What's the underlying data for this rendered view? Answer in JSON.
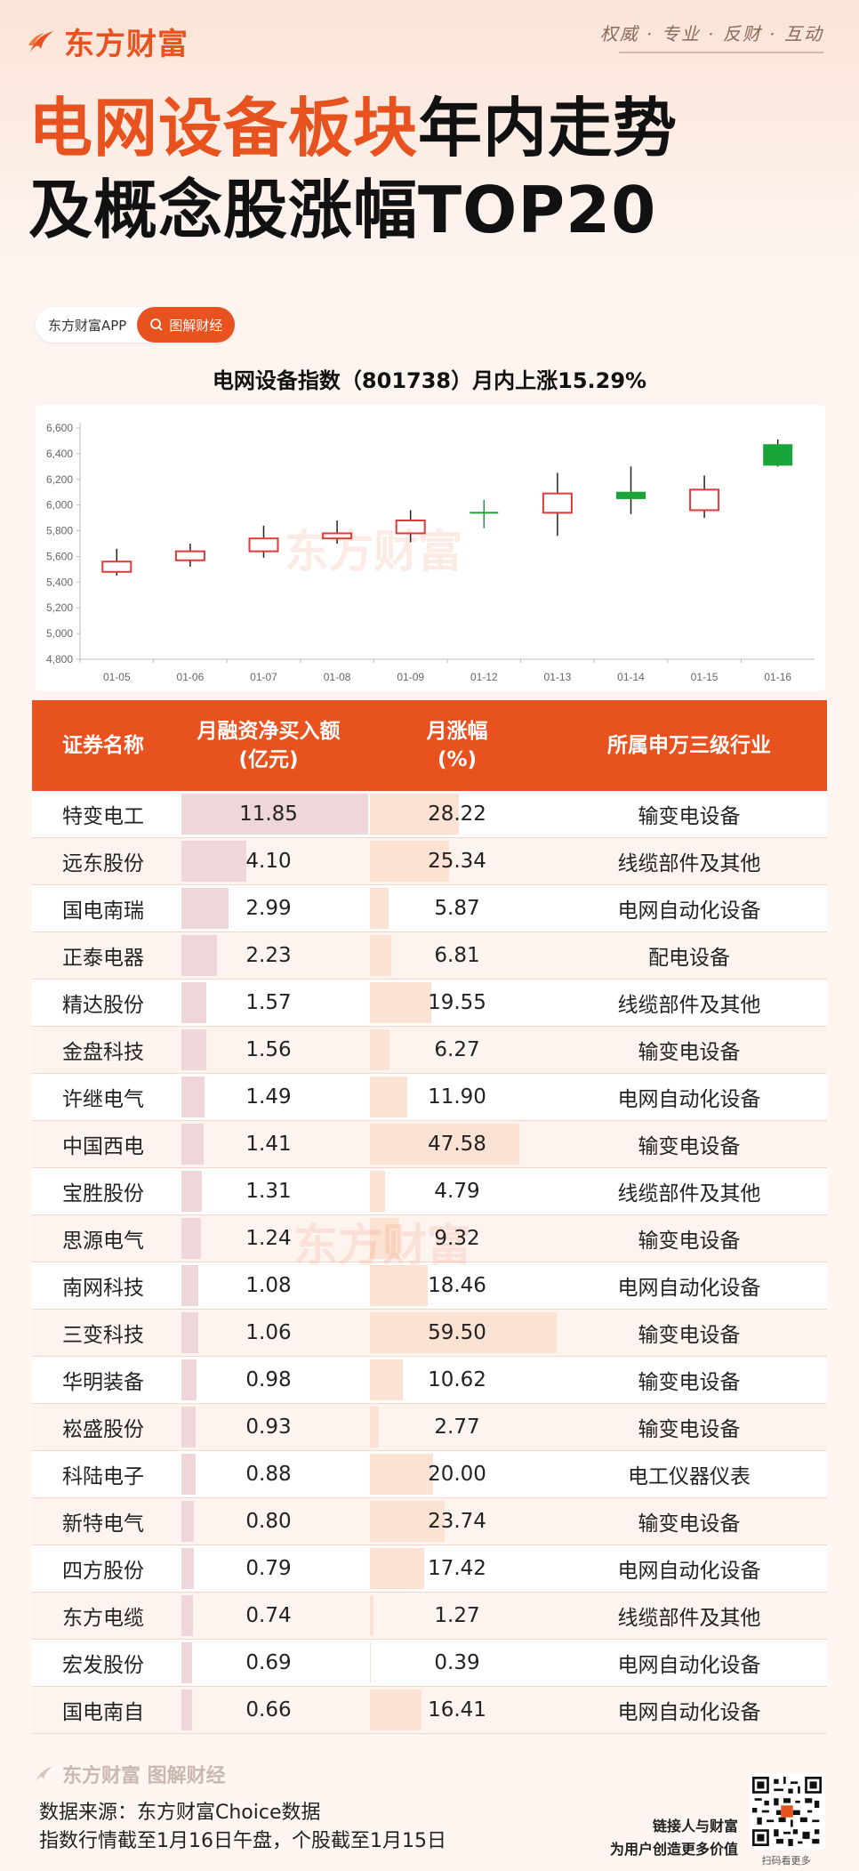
{
  "brand": {
    "name": "东方财富",
    "slogan": "权威 · 专业 · 反财 · 互动"
  },
  "title": {
    "highlight": "电网设备板块",
    "rest": "年内走势",
    "line2": "及概念股涨幅TOP20"
  },
  "tag": {
    "app": "东方财富APP",
    "category": "图解财经"
  },
  "chart_data": {
    "type": "candlestick",
    "title": "电网设备指数（801738）月内上涨15.29%",
    "categories": [
      "01-05",
      "01-06",
      "01-07",
      "01-08",
      "01-09",
      "01-12",
      "01-13",
      "01-14",
      "01-15",
      "01-16"
    ],
    "candles": [
      {
        "open": 5480,
        "close": 5560,
        "high": 5660,
        "low": 5450
      },
      {
        "open": 5570,
        "close": 5640,
        "high": 5700,
        "low": 5520
      },
      {
        "open": 5640,
        "close": 5740,
        "high": 5840,
        "low": 5590
      },
      {
        "open": 5740,
        "close": 5780,
        "high": 5880,
        "low": 5700
      },
      {
        "open": 5780,
        "close": 5880,
        "high": 5960,
        "low": 5710
      },
      {
        "open": 5940,
        "close": 5940,
        "high": 6040,
        "low": 5820
      },
      {
        "open": 5940,
        "close": 6090,
        "high": 6250,
        "low": 5760
      },
      {
        "open": 6100,
        "close": 6050,
        "high": 6300,
        "low": 5930
      },
      {
        "open": 5960,
        "close": 6120,
        "high": 6230,
        "low": 5900
      },
      {
        "open": 6470,
        "close": 6310,
        "high": 6510,
        "low": 6300
      }
    ],
    "yticks": [
      4800,
      5000,
      5200,
      5400,
      5600,
      5800,
      6000,
      6200,
      6400,
      6600
    ],
    "ytick_labels": [
      "4,800",
      "5,000",
      "5,200",
      "5,400",
      "5,600",
      "5,800",
      "6,000",
      "6,200",
      "6,400",
      "6,600"
    ],
    "ylim": [
      4800,
      6600
    ],
    "colors": {
      "up": "#e03a3a",
      "down": "#1aa53a"
    }
  },
  "table": {
    "headers": [
      "证券名称",
      "月融资净买入额\n(亿元)",
      "月涨幅\n(%)",
      "所属申万三级行业"
    ],
    "rows": [
      {
        "name": "特变电工",
        "buy": "11.85",
        "chg": "28.22",
        "ind": "输变电设备"
      },
      {
        "name": "远东股份",
        "buy": "4.10",
        "chg": "25.34",
        "ind": "线缆部件及其他"
      },
      {
        "name": "国电南瑞",
        "buy": "2.99",
        "chg": "5.87",
        "ind": "电网自动化设备"
      },
      {
        "name": "正泰电器",
        "buy": "2.23",
        "chg": "6.81",
        "ind": "配电设备"
      },
      {
        "name": "精达股份",
        "buy": "1.57",
        "chg": "19.55",
        "ind": "线缆部件及其他"
      },
      {
        "name": "金盘科技",
        "buy": "1.56",
        "chg": "6.27",
        "ind": "输变电设备"
      },
      {
        "name": "许继电气",
        "buy": "1.49",
        "chg": "11.90",
        "ind": "电网自动化设备"
      },
      {
        "name": "中国西电",
        "buy": "1.41",
        "chg": "47.58",
        "ind": "输变电设备"
      },
      {
        "name": "宝胜股份",
        "buy": "1.31",
        "chg": "4.79",
        "ind": "线缆部件及其他"
      },
      {
        "name": "思源电气",
        "buy": "1.24",
        "chg": "9.32",
        "ind": "输变电设备"
      },
      {
        "name": "南网科技",
        "buy": "1.08",
        "chg": "18.46",
        "ind": "电网自动化设备"
      },
      {
        "name": "三变科技",
        "buy": "1.06",
        "chg": "59.50",
        "ind": "输变电设备"
      },
      {
        "name": "华明装备",
        "buy": "0.98",
        "chg": "10.62",
        "ind": "输变电设备"
      },
      {
        "name": "崧盛股份",
        "buy": "0.93",
        "chg": "2.77",
        "ind": "输变电设备"
      },
      {
        "name": "科陆电子",
        "buy": "0.88",
        "chg": "20.00",
        "ind": "电工仪器仪表"
      },
      {
        "name": "新特电气",
        "buy": "0.80",
        "chg": "23.74",
        "ind": "输变电设备"
      },
      {
        "name": "四方股份",
        "buy": "0.79",
        "chg": "17.42",
        "ind": "电网自动化设备"
      },
      {
        "name": "东方电缆",
        "buy": "0.74",
        "chg": "1.27",
        "ind": "线缆部件及其他"
      },
      {
        "name": "宏发股份",
        "buy": "0.69",
        "chg": "0.39",
        "ind": "电网自动化设备"
      },
      {
        "name": "国电南自",
        "buy": "0.66",
        "chg": "16.41",
        "ind": "电网自动化设备"
      }
    ]
  },
  "footer": {
    "brand": "东方财富 图解财经",
    "source_line1": "数据来源：东方财富Choice数据",
    "source_line2": "指数行情截至1月16日午盘，个股截至1月15日",
    "promo_line1": "链接人与财富",
    "promo_line2": "为用户创造更多价值",
    "qr_caption": "扫码看更多"
  }
}
